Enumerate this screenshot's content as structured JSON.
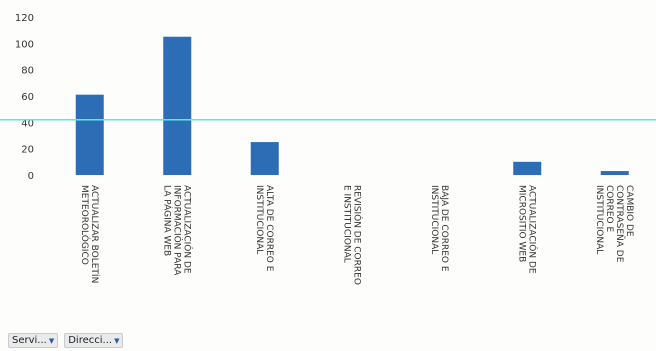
{
  "chart_data": {
    "type": "bar",
    "categories": [
      "ACTUALIZAR BOLETÍN METEOROLÓGICO",
      "ACTUALIZACIÓN DE INFORMACIÓN PARA LA PÁGINA WEB",
      "ALTA DE CORREO E INSTITUCIONAL",
      "REVISIÓN DE CORREO E INSTITUCIONAL",
      "BAJA DE CORREO E INSTITUCIONAL",
      "ACTUALIZACIÓN DE MICROSITIO WEB",
      "CAMBIO DE CONTRASEÑA DE CORREO E INSTITUCIONAL"
    ],
    "values": [
      61,
      105,
      25,
      0,
      0,
      10,
      3
    ],
    "ylim": [
      0,
      120
    ],
    "yticks": [
      0,
      20,
      40,
      60,
      80,
      100,
      120
    ],
    "reference_line": 42,
    "grid": false,
    "colors": {
      "bar": "#2c6db5",
      "reference": "#5fe8e0"
    }
  },
  "filters": [
    {
      "label": "Servi..."
    },
    {
      "label": "Direcci..."
    }
  ]
}
